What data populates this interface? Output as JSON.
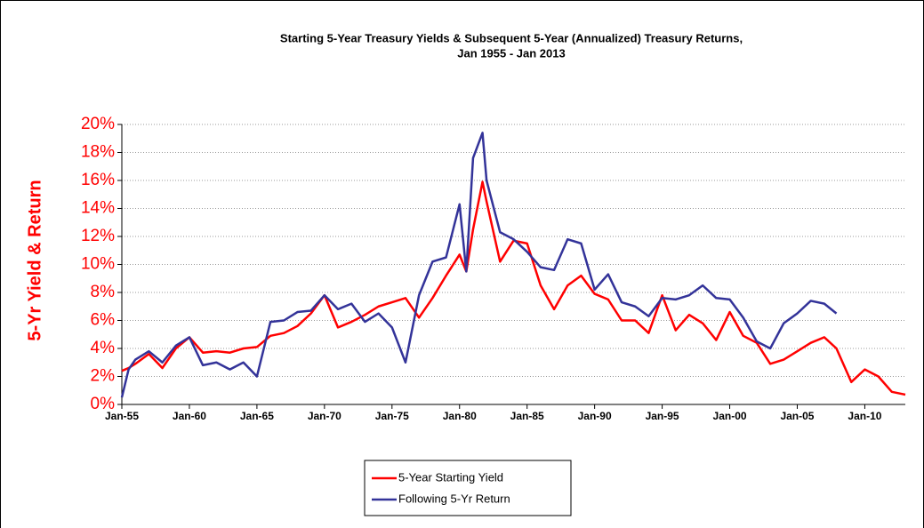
{
  "chart_data": {
    "type": "line",
    "title_lines": [
      "Starting 5-Year Treasury Yields & Subsequent 5-Year (Annualized) Treasury Returns,",
      "Jan 1955 - Jan 2013"
    ],
    "y_label": "5-Yr Yield & Return",
    "x": [
      1955,
      1955.5,
      1956,
      1957,
      1958,
      1959,
      1960,
      1961,
      1962,
      1963,
      1964,
      1965,
      1966,
      1967,
      1968,
      1969,
      1970,
      1971,
      1972,
      1973,
      1974,
      1975,
      1976,
      1977,
      1978,
      1979,
      1980,
      1980.5,
      1981,
      1981.7,
      1982,
      1983,
      1984,
      1985,
      1986,
      1987,
      1988,
      1989,
      1990,
      1991,
      1992,
      1993,
      1994,
      1995,
      1996,
      1997,
      1998,
      1999,
      2000,
      2001,
      2002,
      2003,
      2004,
      2005,
      2006,
      2007,
      2007.9,
      2009,
      2010,
      2011,
      2012,
      2013
    ],
    "series": [
      {
        "name": "5-Year Starting Yield",
        "color": "#ff0000",
        "values": [
          2.4,
          2.6,
          2.9,
          3.6,
          2.6,
          4.0,
          4.8,
          3.7,
          3.8,
          3.7,
          4.0,
          4.1,
          4.9,
          5.1,
          5.6,
          6.5,
          7.8,
          5.5,
          5.9,
          6.4,
          7.0,
          7.3,
          7.6,
          6.2,
          7.6,
          9.2,
          10.7,
          9.5,
          12.5,
          15.9,
          14.5,
          10.2,
          11.7,
          11.5,
          8.5,
          6.8,
          8.5,
          9.2,
          7.9,
          7.5,
          6.0,
          6.0,
          5.1,
          7.8,
          5.3,
          6.4,
          5.8,
          4.6,
          6.6,
          4.9,
          4.4,
          2.9,
          3.2,
          3.8,
          4.4,
          4.8,
          4.0,
          1.6,
          2.5,
          2.0,
          0.9,
          0.7
        ]
      },
      {
        "name": "Following 5-Yr Return",
        "color": "#333399",
        "values": [
          0.5,
          2.5,
          3.2,
          3.8,
          3.0,
          4.2,
          4.8,
          2.8,
          3.0,
          2.5,
          3.0,
          2.0,
          5.9,
          6.0,
          6.6,
          6.7,
          7.8,
          6.8,
          7.2,
          5.9,
          6.5,
          5.5,
          3.0,
          7.8,
          10.2,
          10.5,
          14.3,
          9.5,
          17.6,
          19.4,
          16.0,
          12.3,
          11.8,
          10.9,
          9.8,
          9.6,
          11.8,
          11.5,
          8.2,
          9.3,
          7.3,
          7.0,
          6.3,
          7.6,
          7.5,
          7.8,
          8.5,
          7.6,
          7.5,
          6.2,
          4.5,
          4.0,
          5.8,
          6.5,
          7.4,
          7.2,
          6.5,
          null,
          null,
          null,
          null,
          null
        ]
      }
    ],
    "xlim": [
      1955,
      2013
    ],
    "xticks": [
      {
        "value": 1955,
        "label": "Jan-55"
      },
      {
        "value": 1960,
        "label": "Jan-60"
      },
      {
        "value": 1965,
        "label": "Jan-65"
      },
      {
        "value": 1970,
        "label": "Jan-70"
      },
      {
        "value": 1975,
        "label": "Jan-75"
      },
      {
        "value": 1980,
        "label": "Jan-80"
      },
      {
        "value": 1985,
        "label": "Jan-85"
      },
      {
        "value": 1990,
        "label": "Jan-90"
      },
      {
        "value": 1995,
        "label": "Jan-95"
      },
      {
        "value": 2000,
        "label": "Jan-00"
      },
      {
        "value": 2005,
        "label": "Jan-05"
      },
      {
        "value": 2010,
        "label": "Jan-10"
      }
    ],
    "ylim": [
      0,
      20
    ],
    "yticks": [
      {
        "value": 0,
        "label": "0%"
      },
      {
        "value": 2,
        "label": "2%"
      },
      {
        "value": 4,
        "label": "4%"
      },
      {
        "value": 6,
        "label": "6%"
      },
      {
        "value": 8,
        "label": "8%"
      },
      {
        "value": 10,
        "label": "10%"
      },
      {
        "value": 12,
        "label": "12%"
      },
      {
        "value": 14,
        "label": "14%"
      },
      {
        "value": 16,
        "label": "16%"
      },
      {
        "value": 18,
        "label": "18%"
      },
      {
        "value": 20,
        "label": "20%"
      }
    ],
    "grid": true
  }
}
